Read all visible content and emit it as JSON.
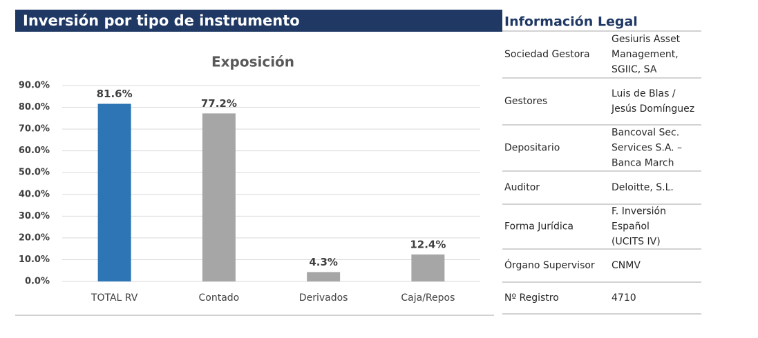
{
  "header": {
    "title": "Inversión por tipo de instrumento"
  },
  "chart_data": {
    "type": "bar",
    "title": "Exposición",
    "categories": [
      "TOTAL RV",
      "Contado",
      "Derivados",
      "Caja/Repos"
    ],
    "values": [
      81.6,
      77.2,
      4.3,
      12.4
    ],
    "value_labels": [
      "81.6%",
      "77.2%",
      "4.3%",
      "12.4%"
    ],
    "colors": [
      "#2e75b6",
      "#a6a6a6",
      "#a6a6a6",
      "#a6a6a6"
    ],
    "ylim": [
      0,
      90
    ],
    "yticks": [
      {
        "value": 0,
        "label": "0.0%"
      },
      {
        "value": 10,
        "label": "10.0%"
      },
      {
        "value": 20,
        "label": "20.0%"
      },
      {
        "value": 30,
        "label": "30.0%"
      },
      {
        "value": 40,
        "label": "40.0%"
      },
      {
        "value": 50,
        "label": "50.0%"
      },
      {
        "value": 60,
        "label": "60.0%"
      },
      {
        "value": 70,
        "label": "70.0%"
      },
      {
        "value": 80,
        "label": "80.0%"
      },
      {
        "value": 90,
        "label": "90.0%"
      }
    ],
    "grid": true
  },
  "legal": {
    "title": "Información Legal",
    "rows": [
      {
        "label": "Sociedad Gestora",
        "value": [
          "Gesiuris Asset",
          "Management,",
          "SGIIC, SA"
        ]
      },
      {
        "label": "Gestores",
        "value": [
          "Luis de Blas /",
          "Jesús Domínguez"
        ]
      },
      {
        "label": "Depositario",
        "value": [
          "Bancoval Sec.",
          "Services S.A. –",
          "Banca March"
        ]
      },
      {
        "label": "Auditor",
        "value": [
          "Deloitte, S.L."
        ]
      },
      {
        "label": "Forma Jurídica",
        "value": [
          "F. Inversión",
          "Español",
          "(UCITS IV)"
        ]
      },
      {
        "label": "Órgano Supervisor",
        "value": [
          "CNMV"
        ]
      },
      {
        "label": "Nº Registro",
        "value": [
          "4710"
        ]
      }
    ]
  }
}
